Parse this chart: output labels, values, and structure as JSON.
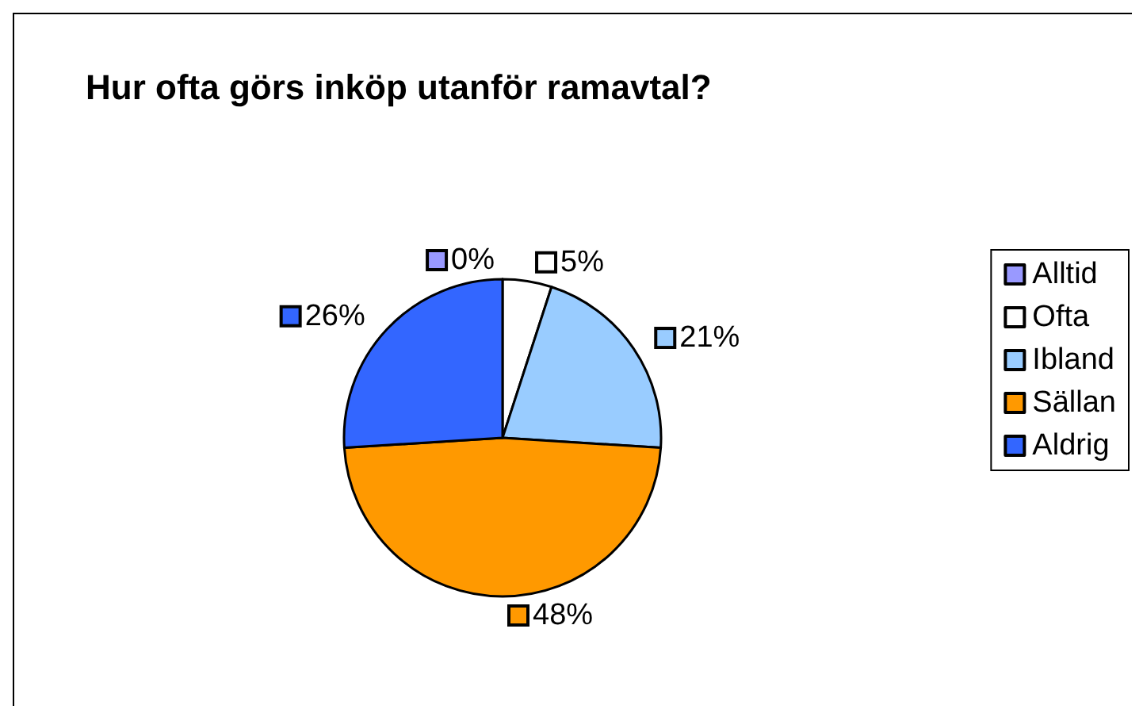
{
  "chart_data": {
    "type": "pie",
    "title": "Hur ofta görs inköp utanför ramavtal?",
    "categories": [
      "Alltid",
      "Ofta",
      "Ibland",
      "Sällan",
      "Aldrig"
    ],
    "values": [
      0,
      5,
      21,
      48,
      26
    ],
    "colors": [
      "#9999ff",
      "#ffffff",
      "#99ccff",
      "#ff9900",
      "#3366ff"
    ],
    "value_labels": [
      "0%",
      "5%",
      "21%",
      "48%",
      "26%"
    ],
    "legend": "right"
  }
}
